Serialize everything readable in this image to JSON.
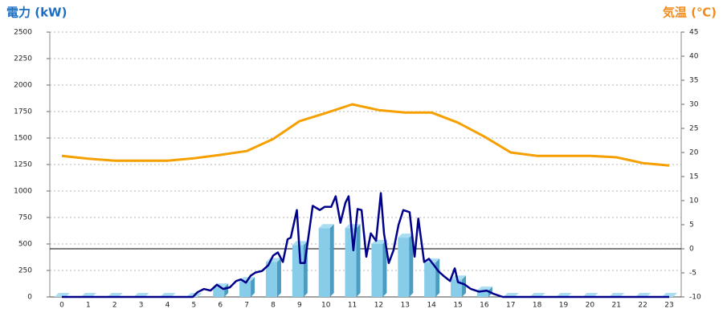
{
  "chart_data": {
    "type": "combo",
    "y_title": "電力 (kW)",
    "y2_title": "気温 (℃)",
    "y_title_color": "#1a6fc4",
    "y2_title_color": "#f08c1e",
    "categories": [
      "0",
      "1",
      "2",
      "3",
      "4",
      "5",
      "6",
      "7",
      "8",
      "9",
      "10",
      "11",
      "12",
      "13",
      "14",
      "15",
      "16",
      "17",
      "18",
      "19",
      "20",
      "21",
      "22",
      "23"
    ],
    "ylim": [
      0,
      2500
    ],
    "yticks": [
      0,
      250,
      500,
      750,
      1000,
      1250,
      1500,
      1750,
      2000,
      2250,
      2500
    ],
    "y2lim": [
      -10,
      45
    ],
    "y2ticks": [
      -10,
      -5,
      0,
      5,
      10,
      15,
      20,
      25,
      30,
      35,
      40,
      45
    ],
    "grid": true,
    "reference_line": {
      "axis": "y2",
      "value": 0,
      "color": "#000000"
    },
    "series": [
      {
        "type": "bar3d",
        "color": "#87cdea",
        "values": [
          0,
          0,
          0,
          0,
          0,
          0,
          90,
          150,
          330,
          490,
          650,
          650,
          500,
          560,
          325,
          165,
          60,
          0,
          0,
          0,
          0,
          0,
          0,
          0
        ]
      },
      {
        "type": "line",
        "color": "#00008b",
        "x": [
          0,
          4.65,
          4.96,
          5.14,
          5.38,
          5.63,
          5.87,
          6.11,
          6.36,
          6.6,
          6.78,
          6.97,
          7.15,
          7.33,
          7.58,
          7.82,
          8.0,
          8.18,
          8.37,
          8.55,
          8.67,
          8.9,
          9.03,
          9.2,
          9.5,
          9.77,
          9.95,
          10.2,
          10.37,
          10.55,
          10.74,
          10.86,
          11.04,
          11.2,
          11.35,
          11.53,
          11.7,
          11.9,
          12.08,
          12.2,
          12.38,
          12.56,
          12.75,
          12.93,
          13.17,
          13.36,
          13.5,
          13.72,
          13.9,
          14.09,
          14.27,
          14.45,
          14.7,
          14.88,
          15.0,
          15.24,
          15.49,
          15.8,
          16.09,
          16.34,
          16.7,
          23
        ],
        "values": [
          0,
          0,
          0,
          45,
          75,
          60,
          115,
          75,
          90,
          150,
          165,
          135,
          200,
          230,
          245,
          300,
          390,
          420,
          330,
          545,
          560,
          820,
          320,
          320,
          860,
          820,
          850,
          850,
          950,
          700,
          890,
          950,
          440,
          830,
          820,
          380,
          600,
          530,
          980,
          600,
          320,
          440,
          680,
          820,
          800,
          380,
          740,
          330,
          360,
          300,
          240,
          200,
          150,
          270,
          140,
          120,
          75,
          50,
          60,
          30,
          0,
          0
        ]
      },
      {
        "type": "line",
        "axis": "y2",
        "color": "#f5a000",
        "values": [
          19.3,
          18.7,
          18.3,
          18.3,
          18.3,
          18.8,
          19.5,
          20.3,
          22.8,
          26.5,
          28.2,
          30,
          28.8,
          28.3,
          28.3,
          26.2,
          23.3,
          20,
          19.3,
          19.3,
          19.3,
          19,
          17.8,
          17.3
        ]
      }
    ]
  }
}
